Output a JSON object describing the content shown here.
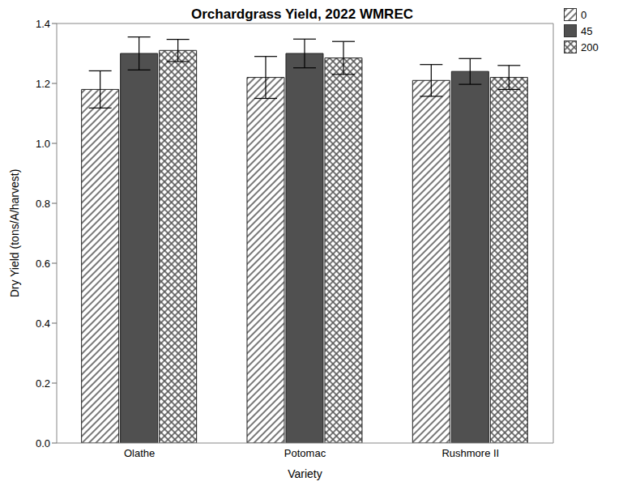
{
  "chart_data": {
    "type": "bar",
    "title": "Orchardgrass Yield, 2022 WMREC",
    "x_label": "Variety",
    "y_label": "Dry Yield (tons/A/harvest)",
    "categories": [
      "Olathe",
      "Potomac",
      "Rushmore II"
    ],
    "series": [
      {
        "name": "0",
        "color": "#555555",
        "values": [
          1.18,
          1.22,
          1.21
        ],
        "errors": [
          0.062,
          0.07,
          0.053
        ]
      },
      {
        "name": "45",
        "color": "#505050",
        "values": [
          1.3,
          1.3,
          1.24
        ],
        "errors": [
          0.055,
          0.048,
          0.043
        ]
      },
      {
        "name": "200",
        "color": "#555555",
        "values": [
          1.31,
          1.285,
          1.22
        ],
        "errors": [
          0.037,
          0.055,
          0.04
        ]
      }
    ],
    "ylim": [
      0,
      1.4
    ],
    "yticks": [
      {
        "value": 0,
        "label": "0.0"
      },
      {
        "value": 0.2,
        "label": "0.2"
      },
      {
        "value": 0.4,
        "label": "0.4"
      },
      {
        "value": 0.6,
        "label": "0.6"
      },
      {
        "value": 0.8,
        "label": "0.8"
      },
      {
        "value": 1,
        "label": "1.0"
      },
      {
        "value": 1.2,
        "label": "1.2"
      },
      {
        "value": 1.4,
        "label": "1.4"
      }
    ],
    "legend": "top-right"
  }
}
